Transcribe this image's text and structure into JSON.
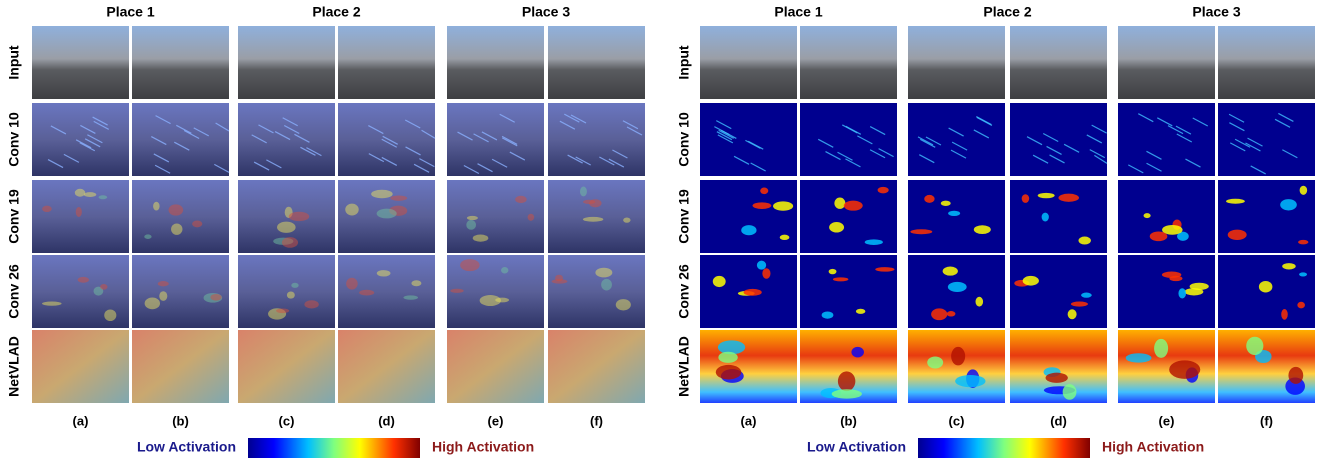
{
  "panels": [
    {
      "places": [
        "Place 1",
        "Place 2",
        "Place 3"
      ],
      "rows": [
        "Input",
        "Conv 10",
        "Conv 19",
        "Conv 26",
        "NetVLAD"
      ],
      "columns": [
        "(a)",
        "(b)",
        "(c)",
        "(d)",
        "(e)",
        "(f)"
      ],
      "legend": {
        "low": "Low Activation",
        "high": "High Activation"
      }
    },
    {
      "places": [
        "Place 1",
        "Place 2",
        "Place 3"
      ],
      "rows": [
        "Input",
        "Conv 10",
        "Conv 19",
        "Conv 26",
        "NetVLAD"
      ],
      "columns": [
        "(a)",
        "(b)",
        "(c)",
        "(d)",
        "(e)",
        "(f)"
      ],
      "legend": {
        "low": "Low Activation",
        "high": "High Activation"
      }
    }
  ]
}
